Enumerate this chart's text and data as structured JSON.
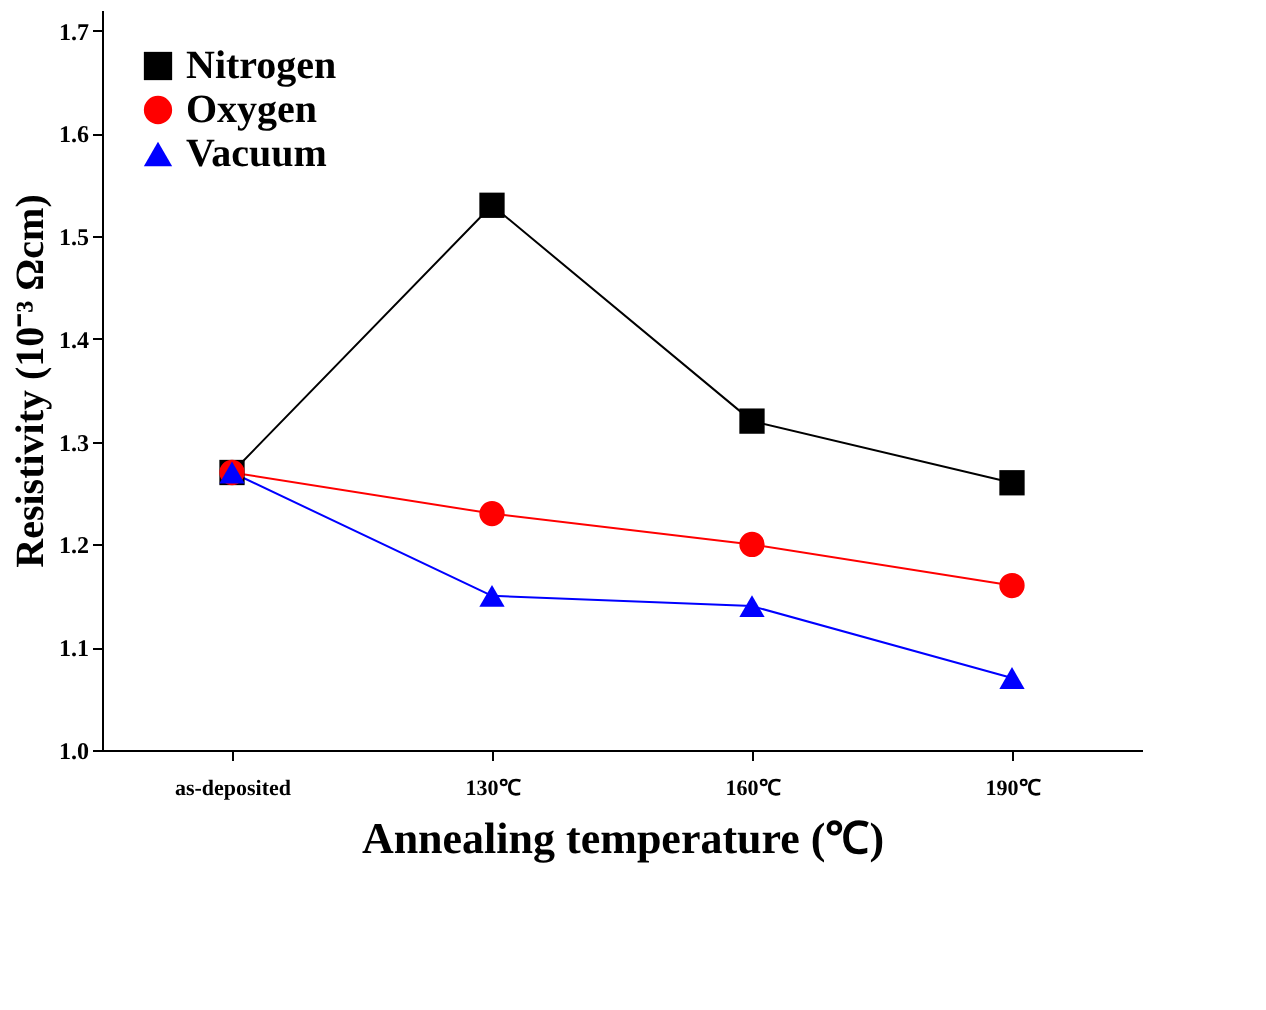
{
  "chart_data": {
    "type": "line",
    "xlabel": "Annealing temperature (℃)",
    "ylabel": "Resistivity (10⁻³ Ωcm)",
    "categories": [
      "as-deposited",
      "130℃",
      "160℃",
      "190℃"
    ],
    "ylim": [
      1.0,
      1.72
    ],
    "yticks": [
      {
        "value": 1.0,
        "label": "1.0"
      },
      1.1,
      1.2,
      1.3,
      1.4,
      1.5,
      1.6,
      1.7
    ],
    "grid": false,
    "legend": "top left",
    "line_style": "solid",
    "series": [
      {
        "name": "Nitrogen",
        "color": "#000000",
        "marker": "square",
        "values": [
          1.27,
          1.53,
          1.32,
          1.26
        ]
      },
      {
        "name": "Oxygen",
        "color": "#ff0000",
        "marker": "circle",
        "values": [
          1.27,
          1.23,
          1.2,
          1.16
        ]
      },
      {
        "name": "Vacuum",
        "color": "#0000ff",
        "marker": "triangle",
        "values": [
          1.27,
          1.15,
          1.14,
          1.07
        ]
      }
    ]
  }
}
